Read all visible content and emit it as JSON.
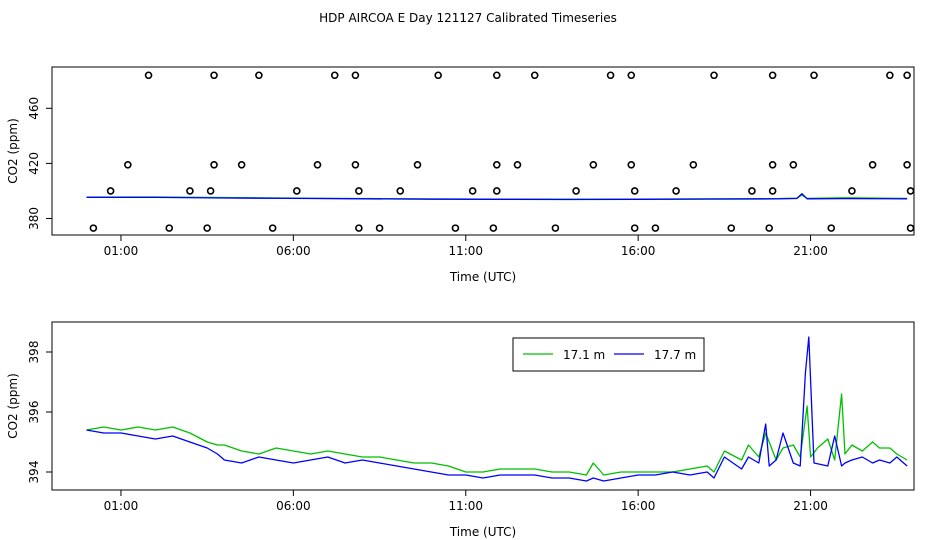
{
  "title": "HDP AIRCOA E  Day 121127  Calibrated Timeseries",
  "colors": {
    "series1": "#00c000",
    "series2": "#0000ff",
    "axis": "#000000"
  },
  "chart_data": [
    {
      "type": "scatter",
      "title": "",
      "xlabel": "Time (UTC)",
      "ylabel": "CO2 (ppm)",
      "x_unit": "hours UTC",
      "xlim": [
        -1,
        24
      ],
      "ylim": [
        368,
        490
      ],
      "xticks": [
        1,
        6,
        11,
        16,
        21
      ],
      "xtick_labels": [
        "01:00",
        "06:00",
        "11:00",
        "16:00",
        "21:00"
      ],
      "yticks": [
        380,
        420,
        460
      ],
      "ytick_labels": [
        "380",
        "420",
        "460"
      ],
      "grid": false,
      "points": [
        {
          "x": 0.2,
          "y": 373
        },
        {
          "x": 0.7,
          "y": 400
        },
        {
          "x": 1.2,
          "y": 419
        },
        {
          "x": 1.8,
          "y": 484
        },
        {
          "x": 2.4,
          "y": 373
        },
        {
          "x": 3.0,
          "y": 400
        },
        {
          "x": 3.5,
          "y": 373
        },
        {
          "x": 3.6,
          "y": 400
        },
        {
          "x": 3.7,
          "y": 419
        },
        {
          "x": 3.7,
          "y": 484
        },
        {
          "x": 4.5,
          "y": 419
        },
        {
          "x": 5.0,
          "y": 484
        },
        {
          "x": 5.4,
          "y": 373
        },
        {
          "x": 6.1,
          "y": 400
        },
        {
          "x": 6.7,
          "y": 419
        },
        {
          "x": 7.2,
          "y": 484
        },
        {
          "x": 7.8,
          "y": 484
        },
        {
          "x": 7.8,
          "y": 419
        },
        {
          "x": 7.9,
          "y": 400
        },
        {
          "x": 7.9,
          "y": 373
        },
        {
          "x": 8.5,
          "y": 373
        },
        {
          "x": 9.1,
          "y": 400
        },
        {
          "x": 9.6,
          "y": 419
        },
        {
          "x": 10.2,
          "y": 484
        },
        {
          "x": 10.7,
          "y": 373
        },
        {
          "x": 11.2,
          "y": 400
        },
        {
          "x": 11.8,
          "y": 373
        },
        {
          "x": 11.9,
          "y": 400
        },
        {
          "x": 11.9,
          "y": 419
        },
        {
          "x": 11.9,
          "y": 484
        },
        {
          "x": 12.5,
          "y": 419
        },
        {
          "x": 13.0,
          "y": 484
        },
        {
          "x": 13.6,
          "y": 373
        },
        {
          "x": 14.2,
          "y": 400
        },
        {
          "x": 14.7,
          "y": 419
        },
        {
          "x": 15.2,
          "y": 484
        },
        {
          "x": 15.8,
          "y": 484
        },
        {
          "x": 15.8,
          "y": 419
        },
        {
          "x": 15.9,
          "y": 400
        },
        {
          "x": 15.9,
          "y": 373
        },
        {
          "x": 16.5,
          "y": 373
        },
        {
          "x": 17.1,
          "y": 400
        },
        {
          "x": 17.6,
          "y": 419
        },
        {
          "x": 18.2,
          "y": 484
        },
        {
          "x": 18.7,
          "y": 373
        },
        {
          "x": 19.3,
          "y": 400
        },
        {
          "x": 19.8,
          "y": 373
        },
        {
          "x": 19.9,
          "y": 400
        },
        {
          "x": 19.9,
          "y": 419
        },
        {
          "x": 19.9,
          "y": 484
        },
        {
          "x": 20.5,
          "y": 419
        },
        {
          "x": 21.1,
          "y": 484
        },
        {
          "x": 21.6,
          "y": 373
        },
        {
          "x": 22.2,
          "y": 400
        },
        {
          "x": 22.8,
          "y": 419
        },
        {
          "x": 23.3,
          "y": 484
        },
        {
          "x": 23.8,
          "y": 484
        },
        {
          "x": 23.8,
          "y": 419
        },
        {
          "x": 23.9,
          "y": 400
        },
        {
          "x": 23.9,
          "y": 373
        }
      ],
      "series": [
        {
          "color": "#00c000",
          "x": [
            0,
            2,
            4,
            6,
            8,
            10,
            12,
            14,
            16,
            18,
            20,
            20.6,
            20.75,
            20.9,
            22,
            23.8
          ],
          "y": [
            395.5,
            395.6,
            395.2,
            394.8,
            394.5,
            394.2,
            394.1,
            394,
            394.1,
            394.3,
            394.4,
            394.7,
            397,
            394.6,
            395,
            394.6
          ]
        },
        {
          "color": "#0000ff",
          "x": [
            0,
            2,
            4,
            6,
            8,
            10,
            12,
            14,
            16,
            18,
            20,
            20.6,
            20.75,
            20.9,
            22,
            23.8
          ],
          "y": [
            395.4,
            395.3,
            394.9,
            394.6,
            394.3,
            394,
            393.9,
            393.8,
            393.9,
            394.1,
            394.2,
            394.5,
            398,
            394.3,
            394.4,
            394.3
          ]
        }
      ]
    },
    {
      "type": "line",
      "title": "",
      "xlabel": "Time (UTC)",
      "ylabel": "CO2 (ppm)",
      "x_unit": "hours UTC",
      "xlim": [
        -1,
        24
      ],
      "ylim": [
        393.4,
        399
      ],
      "xticks": [
        1,
        6,
        11,
        16,
        21
      ],
      "xtick_labels": [
        "01:00",
        "06:00",
        "11:00",
        "16:00",
        "21:00"
      ],
      "yticks": [
        394,
        396,
        398
      ],
      "ytick_labels": [
        "394",
        "396",
        "398"
      ],
      "grid": false,
      "legend": {
        "placement": "top-center"
      },
      "series": [
        {
          "name": "17.1 m",
          "color": "#00c000",
          "x": [
            0,
            0.5,
            1,
            1.5,
            2,
            2.5,
            3,
            3.5,
            3.8,
            4,
            4.5,
            5,
            5.5,
            6,
            6.5,
            7,
            7.5,
            8,
            8.5,
            9,
            9.5,
            10,
            10.5,
            11,
            11.5,
            12,
            12.5,
            13,
            13.5,
            14,
            14.5,
            14.7,
            15,
            15.5,
            16,
            16.5,
            17,
            17.5,
            18,
            18.2,
            18.5,
            19,
            19.2,
            19.5,
            19.7,
            20,
            20.2,
            20.5,
            20.7,
            20.9,
            21,
            21.2,
            21.5,
            21.7,
            21.9,
            22,
            22.2,
            22.5,
            22.8,
            23,
            23.3,
            23.5,
            23.8
          ],
          "y": [
            395.4,
            395.5,
            395.4,
            395.5,
            395.4,
            395.5,
            395.3,
            395.0,
            394.9,
            394.9,
            394.7,
            394.6,
            394.8,
            394.7,
            394.6,
            394.7,
            394.6,
            394.5,
            394.5,
            394.4,
            394.3,
            394.3,
            394.2,
            394.0,
            394.0,
            394.1,
            394.1,
            394.1,
            394.0,
            394.0,
            393.9,
            394.3,
            393.9,
            394.0,
            394.0,
            394.0,
            394.0,
            394.1,
            394.2,
            394.0,
            394.7,
            394.4,
            394.9,
            394.5,
            395.3,
            394.4,
            394.8,
            394.9,
            394.5,
            396.2,
            394.5,
            394.8,
            395.1,
            394.4,
            396.6,
            394.6,
            394.9,
            394.7,
            395.0,
            394.8,
            394.8,
            394.6,
            394.4
          ]
        },
        {
          "name": "17.7 m",
          "color": "#0000ff",
          "x": [
            0,
            0.5,
            1,
            1.5,
            2,
            2.5,
            3,
            3.5,
            3.8,
            4,
            4.5,
            5,
            5.5,
            6,
            6.5,
            7,
            7.5,
            8,
            8.5,
            9,
            9.5,
            10,
            10.5,
            11,
            11.5,
            12,
            12.5,
            13,
            13.5,
            14,
            14.5,
            14.7,
            15,
            15.5,
            16,
            16.5,
            17,
            17.5,
            18,
            18.2,
            18.5,
            19,
            19.2,
            19.5,
            19.7,
            19.8,
            20,
            20.2,
            20.5,
            20.7,
            20.85,
            20.95,
            21.1,
            21.5,
            21.7,
            21.9,
            22,
            22.2,
            22.5,
            22.8,
            23,
            23.3,
            23.5,
            23.8
          ],
          "y": [
            395.4,
            395.3,
            395.3,
            395.2,
            395.1,
            395.2,
            395.0,
            394.8,
            394.6,
            394.4,
            394.3,
            394.5,
            394.4,
            394.3,
            394.4,
            394.5,
            394.3,
            394.4,
            394.3,
            394.2,
            394.1,
            394.0,
            393.9,
            393.9,
            393.8,
            393.9,
            393.9,
            393.9,
            393.8,
            393.8,
            393.7,
            393.8,
            393.7,
            393.8,
            393.9,
            393.9,
            394.0,
            393.9,
            394.0,
            393.8,
            394.5,
            394.1,
            394.5,
            394.3,
            395.6,
            394.2,
            394.4,
            395.3,
            394.3,
            394.2,
            397.3,
            398.5,
            394.3,
            394.2,
            395.2,
            394.2,
            394.3,
            394.4,
            394.5,
            394.3,
            394.4,
            394.3,
            394.5,
            394.2
          ]
        }
      ]
    }
  ]
}
